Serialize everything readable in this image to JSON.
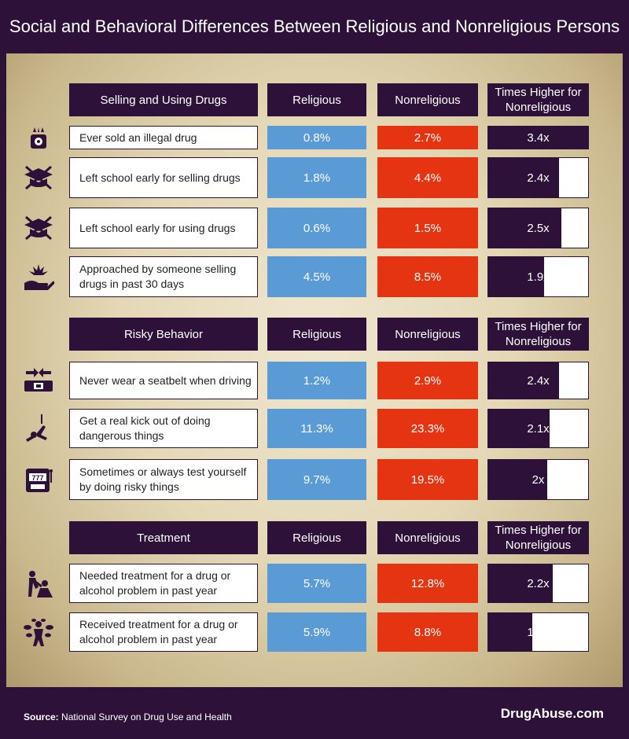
{
  "title": "Social and Behavioral Differences Between Religious and Nonreligious Persons",
  "footer": {
    "source_label": "Source:",
    "source_text": "National Survey on Drug Use and Health",
    "brand": "DrugAbuse.com"
  },
  "colors": {
    "purple": "#2e1138",
    "religious": "#5b9bd5",
    "nonreligious": "#e43412"
  },
  "chart_data": {
    "type": "table",
    "columns": [
      "Religious",
      "Nonreligious",
      "Times Higher for Nonreligious"
    ],
    "sections": [
      {
        "title": "Selling and Using Drugs",
        "col_religious": "Religious",
        "col_nonreligious": "Nonreligious",
        "col_ratio": "Times Higher for Nonreligious",
        "rows": [
          {
            "label": "Ever sold an illegal drug",
            "religious": "0.8%",
            "nonreligious": "2.7%",
            "ratio": "3.4x",
            "ratio_value": 3.4,
            "icon": "scale-icon"
          },
          {
            "label": "Left school early for selling drugs",
            "religious": "1.8%",
            "nonreligious": "4.4%",
            "ratio": "2.4x",
            "ratio_value": 2.4,
            "icon": "graduation-cap-crossed-icon"
          },
          {
            "label": "Left school early for using drugs",
            "religious": "0.6%",
            "nonreligious": "1.5%",
            "ratio": "2.5x",
            "ratio_value": 2.5,
            "icon": "graduation-cap-crossed-icon"
          },
          {
            "label": "Approached by someone selling drugs in past 30 days",
            "religious": "4.5%",
            "nonreligious": "8.5%",
            "ratio": "1.9x",
            "ratio_value": 1.9,
            "icon": "hand-leaf-icon"
          }
        ]
      },
      {
        "title": "Risky Behavior",
        "col_religious": "Religious",
        "col_nonreligious": "Nonreligious",
        "col_ratio": "Times Higher for Nonreligious",
        "rows": [
          {
            "label": "Never wear a seatbelt when driving",
            "religious": "1.2%",
            "nonreligious": "2.9%",
            "ratio": "2.4x",
            "ratio_value": 2.4,
            "icon": "seatbelt-icon"
          },
          {
            "label": "Get a real kick out of doing dangerous things",
            "religious": "11.3%",
            "nonreligious": "23.3%",
            "ratio": "2.1x",
            "ratio_value": 2.1,
            "icon": "bungee-jumper-icon"
          },
          {
            "label": "Sometimes or always test yourself by doing risky things",
            "religious": "9.7%",
            "nonreligious": "19.5%",
            "ratio": "2x",
            "ratio_value": 2.0,
            "icon": "slot-machine-icon"
          }
        ]
      },
      {
        "title": "Treatment",
        "col_religious": "Religious",
        "col_nonreligious": "Nonreligious",
        "col_ratio": "Times Higher for Nonreligious",
        "rows": [
          {
            "label": "Needed treatment for a drug or alcohol problem in past year",
            "religious": "5.7%",
            "nonreligious": "12.8%",
            "ratio": "2.2x",
            "ratio_value": 2.2,
            "icon": "helping-person-icon"
          },
          {
            "label": "Received treatment for a drug or alcohol problem in past year",
            "religious": "5.9%",
            "nonreligious": "8.8%",
            "ratio": "1.5x",
            "ratio_value": 1.5,
            "icon": "growth-person-icon"
          }
        ]
      }
    ]
  }
}
